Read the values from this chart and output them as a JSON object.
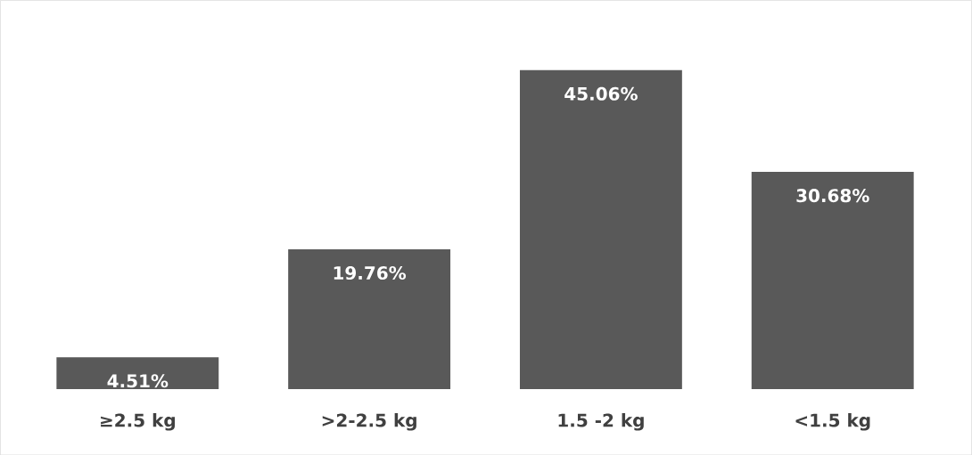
{
  "chart_data": {
    "type": "bar",
    "categories": [
      "≥2.5 kg",
      ">2-2.5 kg",
      "1.5 -2 kg",
      "<1.5 kg"
    ],
    "values": [
      4.51,
      19.76,
      45.06,
      30.68
    ],
    "value_labels": [
      "4.51%",
      "19.76%",
      "45.06%",
      "30.68%"
    ],
    "color": "#595959"
  }
}
